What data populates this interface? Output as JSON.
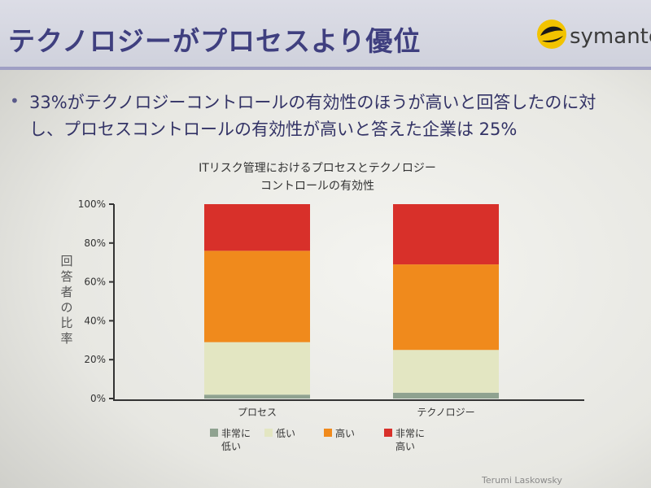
{
  "header": {
    "title": "テクノロジーがプロセスより優位",
    "brand": "symantec."
  },
  "body": {
    "bullet_line1": "33%がテクノロジーコントロールの有効性のほうが高いと回答したのに対",
    "bullet_line2": "し、プロセスコントロールの有効性が高いと答えた企業は 25%"
  },
  "chart_data": {
    "type": "bar",
    "stacked": true,
    "title_line1": "ITリスク管理におけるプロセスとテクノロジー",
    "title_line2": "コントロールの有効性",
    "ylabel": "回答者の比率",
    "categories": [
      "プロセス",
      "テクノロジー"
    ],
    "ylim": [
      0,
      100
    ],
    "yticks": [
      "0%",
      "20%",
      "40%",
      "60%",
      "80%",
      "100%"
    ],
    "series": [
      {
        "name": "非常に低い",
        "values": [
          2,
          3
        ],
        "color": "#8fa290"
      },
      {
        "name": "低い",
        "values": [
          27,
          22
        ],
        "color": "#e3e6c2"
      },
      {
        "name": "高い",
        "values": [
          47,
          44
        ],
        "color": "#f08a1c"
      },
      {
        "name": "非常に高い",
        "values": [
          24,
          31
        ],
        "color": "#d8302a"
      }
    ],
    "legend_position": "bottom"
  },
  "footer": {
    "credit": "Terumi Laskowsky"
  }
}
